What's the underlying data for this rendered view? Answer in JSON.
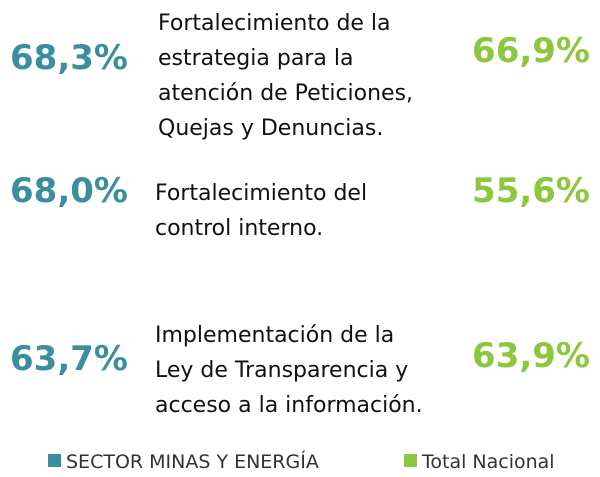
{
  "items": [
    {
      "sector": "68,3%",
      "label": [
        "Fortalecimiento de la",
        "estrategia para la",
        "atención de Peticiones,",
        "Quejas y Denuncias."
      ],
      "national": "66,9%"
    },
    {
      "sector": "68,0%",
      "label": [
        "Fortalecimiento del",
        "control interno."
      ],
      "national": "55,6%"
    },
    {
      "sector": "63,7%",
      "label": [
        "Implementación de la",
        "Ley de Transparencia y",
        "acceso a la información."
      ],
      "national": "63,9%"
    }
  ],
  "legend": [
    {
      "name": "SECTOR MINAS Y ENERGÍA",
      "color": "#3b8ea0"
    },
    {
      "name": "Total Nacional",
      "color": "#8dc63f"
    }
  ]
}
